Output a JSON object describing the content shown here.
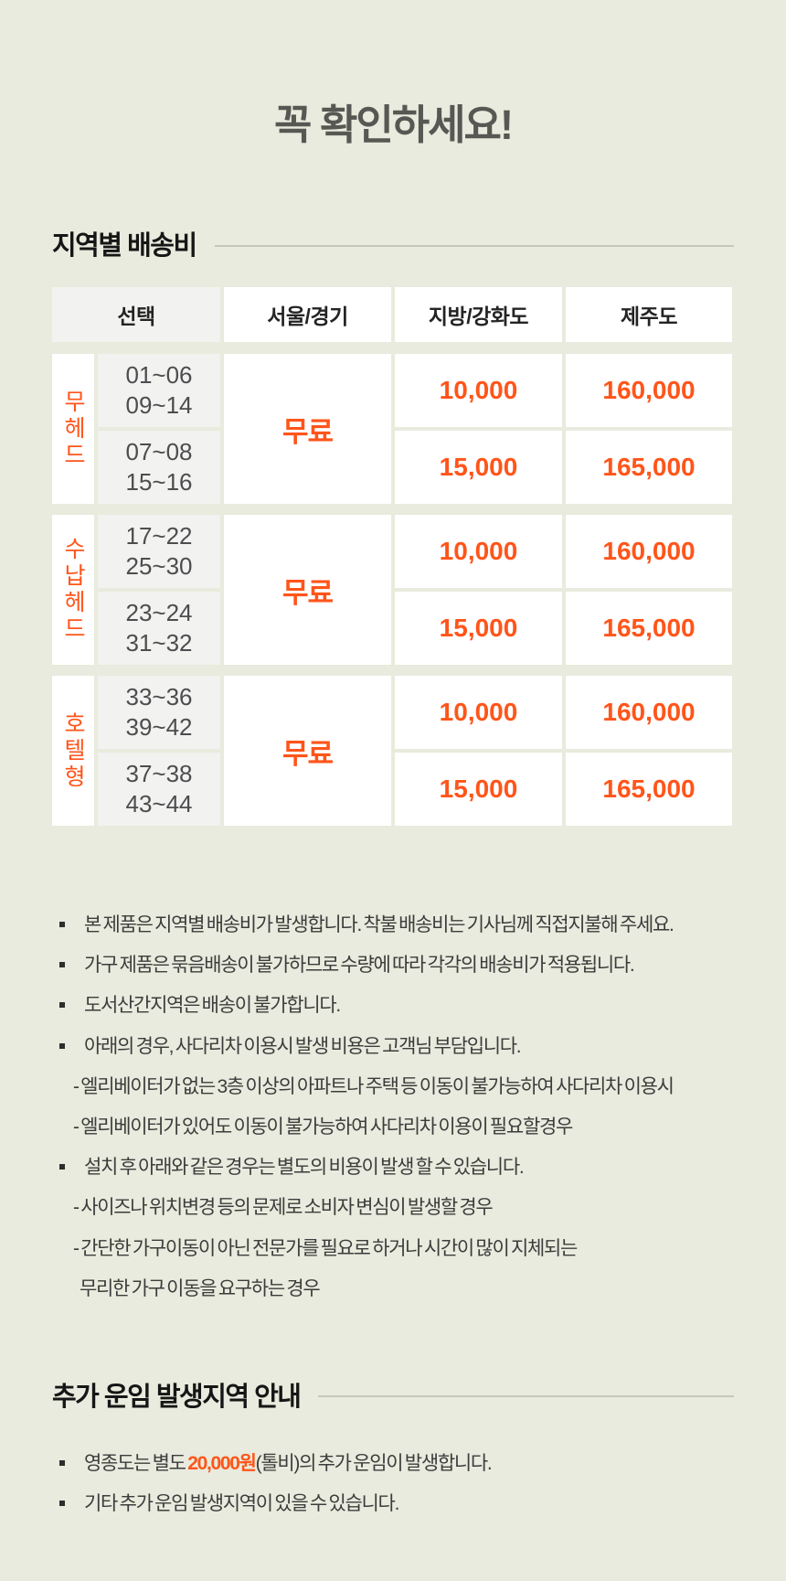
{
  "colors": {
    "background": "#e8ebdd",
    "accent_orange": "#ff551a",
    "cell_gray": "#f2f2f0"
  },
  "title": "꼭 확인하세요!",
  "shipping_section": {
    "heading": "지역별 배송비",
    "table": {
      "headers": [
        "선택",
        "서울/경기",
        "지방/강화도",
        "제주도"
      ],
      "groups": [
        {
          "label": "무헤드",
          "seoul_value": "무료",
          "rows": [
            {
              "lines": [
                "01~06",
                "09~14"
              ],
              "local": "10,000",
              "jeju": "160,000"
            },
            {
              "lines": [
                "07~08",
                "15~16"
              ],
              "local": "15,000",
              "jeju": "165,000"
            }
          ]
        },
        {
          "label": "수납헤드",
          "seoul_value": "무료",
          "rows": [
            {
              "lines": [
                "17~22",
                "25~30"
              ],
              "local": "10,000",
              "jeju": "160,000"
            },
            {
              "lines": [
                "23~24",
                "31~32"
              ],
              "local": "15,000",
              "jeju": "165,000"
            }
          ]
        },
        {
          "label": "호텔형",
          "seoul_value": "무료",
          "rows": [
            {
              "lines": [
                "33~36",
                "39~42"
              ],
              "local": "10,000",
              "jeju": "160,000"
            },
            {
              "lines": [
                "37~38",
                "43~44"
              ],
              "local": "15,000",
              "jeju": "165,000"
            }
          ]
        }
      ]
    },
    "notes": [
      {
        "style": "bullet",
        "text": "본 제품은 지역별 배송비가 발생합니다. 착불 배송비는 기사님께 직접지불해 주세요."
      },
      {
        "style": "bullet",
        "text": "가구 제품은 묶음배송이 불가하므로 수량에 따라 각각의 배송비가 적용됩니다."
      },
      {
        "style": "bullet",
        "text": "도서산간지역은 배송이 불가합니다."
      },
      {
        "style": "bullet",
        "text": "아래의 경우, 사다리차 이용시 발생 비용은 고객님 부담입니다."
      },
      {
        "style": "dash",
        "text": "- 엘리베이터가 없는 3층 이상의 아파트나 주택 등 이동이 불가능하여 사다리차 이용시"
      },
      {
        "style": "dash",
        "text": "- 엘리베이터가 있어도 이동이 불가능하여 사다리차 이용이 필요할경우"
      },
      {
        "style": "bullet",
        "text": "설치 후 아래와 같은 경우는 별도의 비용이 발생 할 수 있습니다."
      },
      {
        "style": "dash",
        "text": "- 사이즈나 위치변경 등의 문제로 소비자 변심이 발생할 경우"
      },
      {
        "style": "dash",
        "text": "- 간단한 가구이동이 아닌 전문가를 필요로 하거나 시간이 많이 지체되는"
      },
      {
        "style": "cont",
        "text": "무리한 가구 이동을 요구하는 경우"
      }
    ]
  },
  "extra_section": {
    "heading": "추가 운임 발생지역 안내",
    "notes": [
      {
        "style": "bullet",
        "segments": [
          {
            "text": "영종도는 별도 ",
            "accent": false
          },
          {
            "text": "20,000원",
            "accent": true
          },
          {
            "text": "(톨비)의 추가 운임이 발생합니다.",
            "accent": false
          }
        ]
      },
      {
        "style": "bullet",
        "text": "기타 추가 운임 발생지역이 있을 수 있습니다."
      }
    ]
  }
}
